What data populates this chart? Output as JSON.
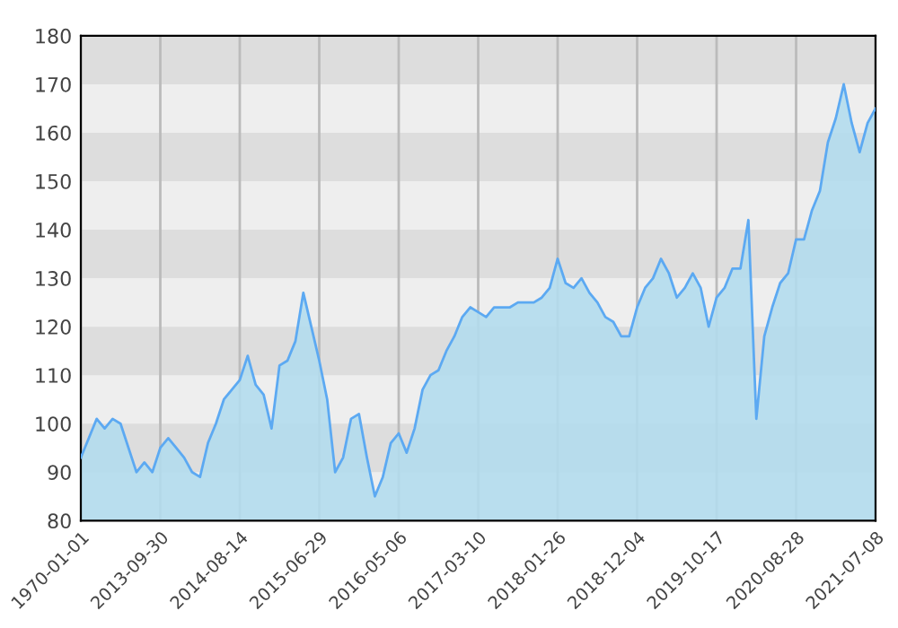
{
  "chart_data": {
    "type": "area",
    "categories": [
      "1970-01-01",
      null,
      null,
      null,
      null,
      null,
      null,
      null,
      null,
      null,
      "2013-09-30",
      null,
      null,
      null,
      null,
      null,
      null,
      null,
      null,
      null,
      "2014-08-14",
      null,
      null,
      null,
      null,
      null,
      null,
      null,
      null,
      null,
      "2015-06-29",
      null,
      null,
      null,
      null,
      null,
      null,
      null,
      null,
      null,
      "2016-05-06",
      null,
      null,
      null,
      null,
      null,
      null,
      null,
      null,
      null,
      "2017-03-10",
      null,
      null,
      null,
      null,
      null,
      null,
      null,
      null,
      null,
      "2018-01-26",
      null,
      null,
      null,
      null,
      null,
      null,
      null,
      null,
      null,
      "2018-12-04",
      null,
      null,
      null,
      null,
      null,
      null,
      null,
      null,
      null,
      "2019-10-17",
      null,
      null,
      null,
      null,
      null,
      null,
      null,
      null,
      null,
      "2020-08-28",
      null,
      null,
      null,
      null,
      null,
      null,
      null,
      null,
      null,
      "2021-07-08"
    ],
    "series": [
      {
        "color": "#5ca9f2",
        "values": [
          93,
          97,
          101,
          99,
          101,
          100,
          95,
          90,
          92,
          90,
          95,
          97,
          95,
          93,
          90,
          89,
          96,
          100,
          105,
          107,
          109,
          114,
          108,
          106,
          99,
          112,
          113,
          117,
          127,
          120,
          113,
          105,
          90,
          93,
          101,
          102,
          93,
          85,
          89,
          96,
          98,
          94,
          99,
          107,
          110,
          111,
          115,
          118,
          122,
          124,
          123,
          122,
          124,
          124,
          124,
          125,
          125,
          125,
          126,
          128,
          134,
          129,
          128,
          130,
          127,
          125,
          122,
          121,
          118,
          118,
          124,
          128,
          130,
          134,
          131,
          126,
          128,
          131,
          128,
          120,
          126,
          128,
          132,
          132,
          142,
          101,
          118,
          124,
          129,
          131,
          138,
          138,
          144,
          148,
          158,
          163,
          170,
          162,
          156,
          162,
          165
        ]
      }
    ],
    "ylim": [
      80,
      180
    ],
    "yticks": [
      80,
      90,
      100,
      110,
      120,
      130,
      140,
      150,
      160,
      170,
      180
    ],
    "grid": "x",
    "bands": [
      {
        "axis": "y",
        "from": 90,
        "to": 100,
        "color": "#dddddd"
      },
      {
        "axis": "y",
        "from": 110,
        "to": 120,
        "color": "#dddddd"
      },
      {
        "axis": "y",
        "from": 130,
        "to": 140,
        "color": "#dddddd"
      },
      {
        "axis": "y",
        "from": 150,
        "to": 160,
        "color": "#dddddd"
      },
      {
        "axis": "y",
        "from": 170,
        "to": 180,
        "color": "#dddddd"
      }
    ]
  }
}
